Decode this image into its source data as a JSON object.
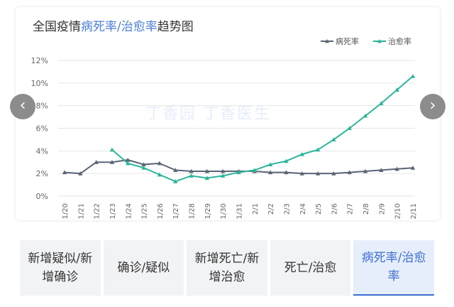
{
  "title": {
    "prefix": "全国疫情",
    "highlight": "病死率/治愈率",
    "suffix": "趋势图"
  },
  "nav": {
    "prev_icon": "chevron-left-icon",
    "next_icon": "chevron-right-icon",
    "prev_glyph": "‹",
    "next_glyph": "›"
  },
  "watermark": "丁香园    丁香医生",
  "tabs": [
    {
      "label": "新增疑似/新增确诊",
      "active": false
    },
    {
      "label": "确诊/疑似",
      "active": false
    },
    {
      "label": "新增死亡/新增治愈",
      "active": false
    },
    {
      "label": "死亡/治愈",
      "active": false
    },
    {
      "label": "病死率/治愈率",
      "active": true
    }
  ],
  "colors": {
    "death": "#5b6474",
    "cure": "#2bb59a",
    "grid": "#e6e6e6",
    "active_tab": "#3c6fd0"
  },
  "chart_data": {
    "type": "line",
    "categories": [
      "1/20",
      "1/21",
      "1/22",
      "1/23",
      "1/24",
      "1/25",
      "1/26",
      "1/27",
      "1/28",
      "1/29",
      "1/30",
      "1/31",
      "2/1",
      "2/2",
      "2/3",
      "2/4",
      "2/5",
      "2/6",
      "2/7",
      "2/8",
      "2/9",
      "2/10",
      "2/11"
    ],
    "yticks": [
      "0%",
      "2%",
      "4%",
      "6%",
      "8%",
      "10%",
      "12%"
    ],
    "ylim": [
      0,
      12
    ],
    "grid": true,
    "legend": "top-right",
    "series": [
      {
        "name": "病死率",
        "color": "#5b6474",
        "marker": "triangle",
        "values": [
          2.1,
          2.0,
          3.0,
          3.0,
          3.2,
          2.8,
          2.9,
          2.3,
          2.2,
          2.2,
          2.2,
          2.2,
          2.2,
          2.1,
          2.1,
          2.0,
          2.0,
          2.0,
          2.1,
          2.2,
          2.3,
          2.4,
          2.5
        ]
      },
      {
        "name": "治愈率",
        "color": "#2bb59a",
        "marker": "triangle",
        "values": [
          null,
          null,
          null,
          4.1,
          2.9,
          2.5,
          1.9,
          1.3,
          1.8,
          1.6,
          1.8,
          2.1,
          2.3,
          2.8,
          3.1,
          3.7,
          4.1,
          5.0,
          6.0,
          7.1,
          8.2,
          9.4,
          10.6
        ]
      }
    ]
  }
}
